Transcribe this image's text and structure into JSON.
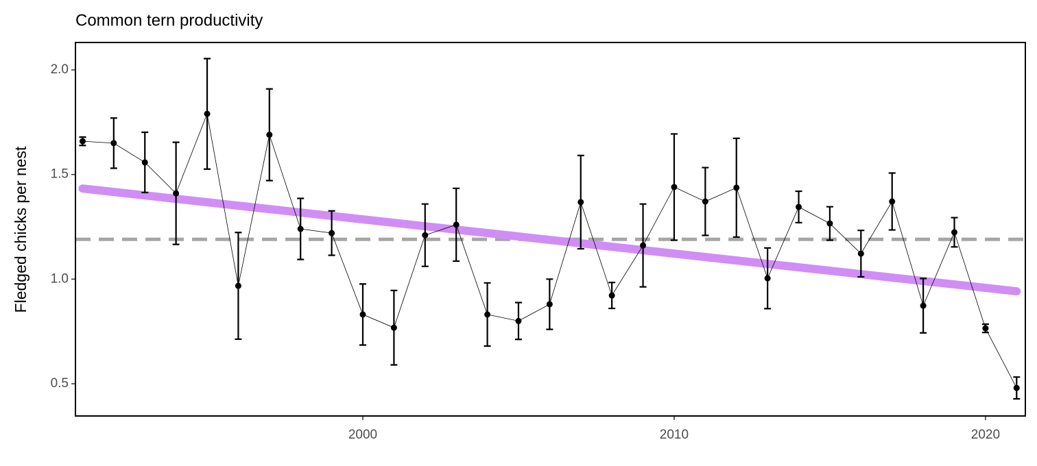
{
  "chart_data": {
    "type": "line",
    "title": "Common tern productivity",
    "y_label": "Fledged chicks per nest",
    "x": [
      1991,
      1992,
      1993,
      1994,
      1995,
      1996,
      1997,
      1998,
      1999,
      2000,
      2001,
      2002,
      2003,
      2004,
      2005,
      2006,
      2007,
      2008,
      2009,
      2010,
      2011,
      2012,
      2013,
      2014,
      2015,
      2016,
      2017,
      2018,
      2019,
      2020,
      2021
    ],
    "series": [
      {
        "color": "#000000",
        "values": [
          1.659,
          1.65,
          1.558,
          1.41,
          1.79,
          0.968,
          1.69,
          1.24,
          1.22,
          0.831,
          0.768,
          1.21,
          1.26,
          0.831,
          0.8,
          0.88,
          1.368,
          0.922,
          1.161,
          1.44,
          1.371,
          1.437,
          1.004,
          1.345,
          1.266,
          1.122,
          1.371,
          0.873,
          1.224,
          0.765,
          0.48
        ],
        "errors": [
          0.02,
          0.12,
          0.144,
          0.244,
          0.264,
          0.255,
          0.219,
          0.146,
          0.106,
          0.146,
          0.178,
          0.149,
          0.174,
          0.151,
          0.088,
          0.12,
          0.223,
          0.062,
          0.198,
          0.254,
          0.162,
          0.236,
          0.145,
          0.075,
          0.08,
          0.111,
          0.136,
          0.13,
          0.07,
          0.02,
          0.052
        ]
      }
    ],
    "trend": {
      "x": [
        1991,
        2021
      ],
      "values": [
        1.433,
        0.942
      ],
      "color": "#d08ef5"
    },
    "mean": {
      "value": 1.19,
      "color": "#a6a6a6"
    },
    "xlim": [
      1990.77,
      2021.28
    ],
    "xticks": [
      2000,
      2010,
      2020
    ],
    "ylim": [
      0.346,
      2.131
    ],
    "yticks": [
      0.5,
      {
        "value": 1,
        "label": "1.0"
      },
      1.5,
      {
        "value": 2,
        "label": "2.0"
      }
    ]
  }
}
